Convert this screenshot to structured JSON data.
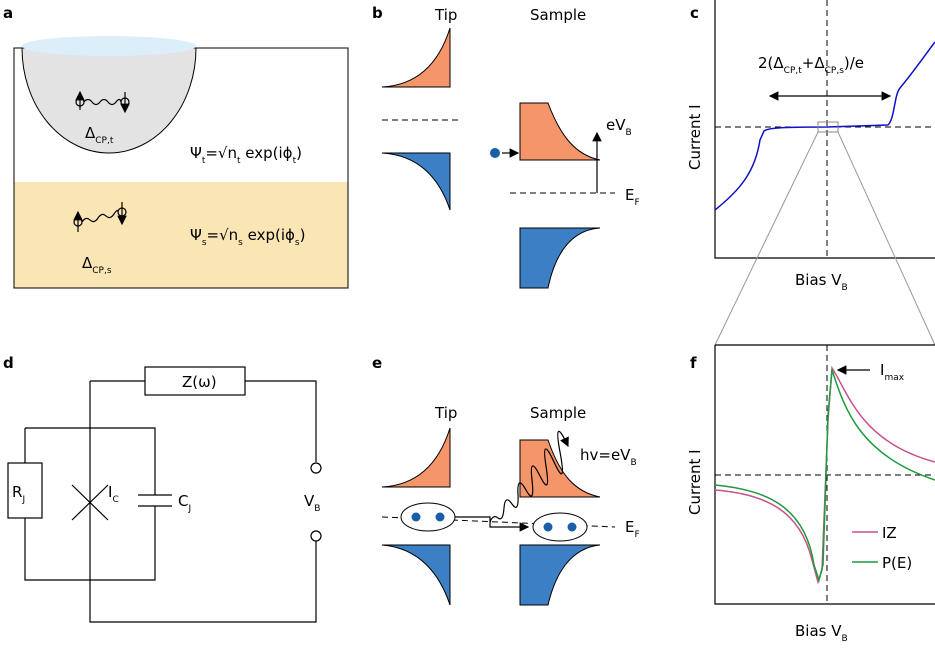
{
  "panels": {
    "a": {
      "label": "a",
      "delta_t": [
        "Δ",
        "CP,t"
      ],
      "psi_t": [
        "Ψ",
        "t",
        "=√n",
        "t",
        " exp(iϕ",
        "t",
        ")"
      ],
      "delta_s": [
        "Δ",
        "CP,s"
      ],
      "psi_s": [
        "Ψ",
        "s",
        "=√n",
        "s",
        " exp(iϕ",
        "s",
        ")"
      ]
    },
    "b": {
      "label": "b",
      "tip": "Tip",
      "sample": "Sample",
      "ev": [
        "eV",
        "B"
      ],
      "ef": [
        "E",
        "F"
      ]
    },
    "c": {
      "label": "c",
      "gap": [
        "2(Δ",
        "CP,t",
        "+Δ",
        "CP,s",
        ")/e"
      ],
      "ylabel": "Current I",
      "xlabel": [
        "Bias V",
        "B"
      ]
    },
    "d": {
      "label": "d",
      "z": "Z(ω)",
      "rj": [
        "R",
        "J"
      ],
      "ic": [
        "I",
        "C"
      ],
      "cj": [
        "C",
        "J"
      ],
      "vb": [
        "V",
        "B"
      ]
    },
    "e": {
      "label": "e",
      "tip": "Tip",
      "sample": "Sample",
      "hv": [
        "hv=eV",
        "B"
      ],
      "ef": [
        "E",
        "F"
      ]
    },
    "f": {
      "label": "f",
      "imax": [
        "I",
        "max"
      ],
      "ylabel": "Current I",
      "xlabel": [
        "Bias V",
        "B"
      ],
      "legend": [
        "IZ",
        "P(E)"
      ]
    }
  }
}
